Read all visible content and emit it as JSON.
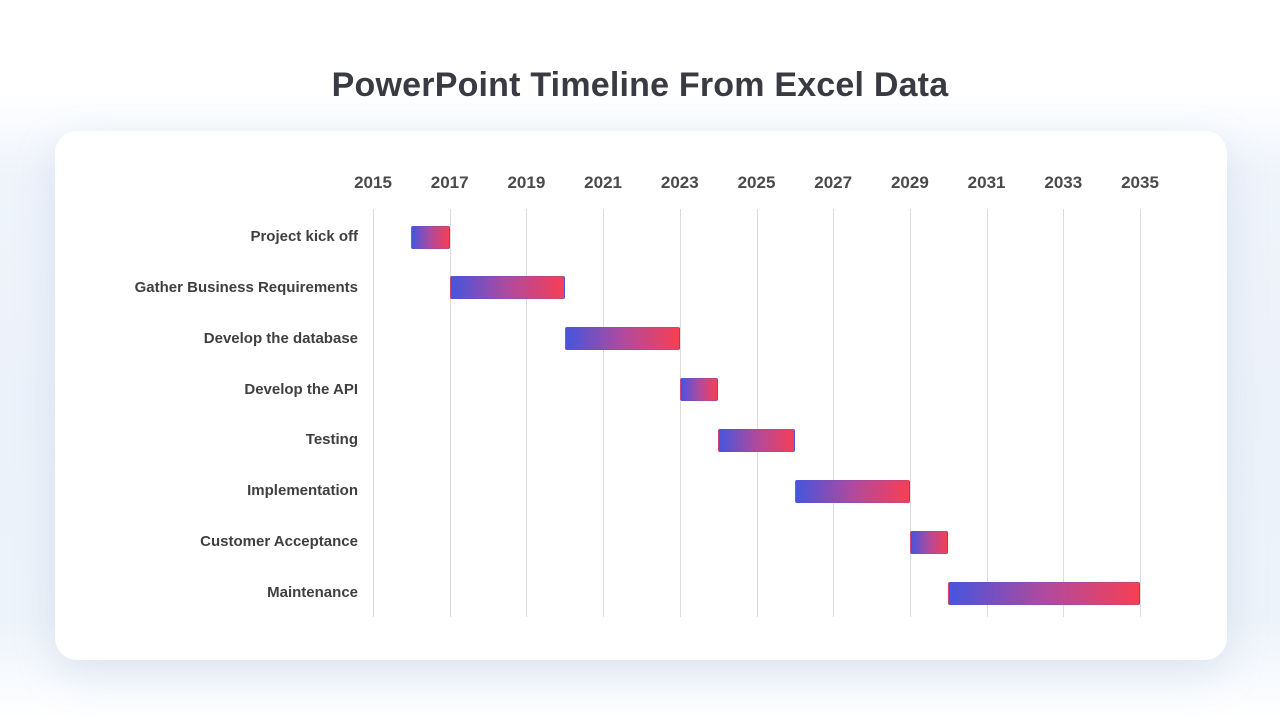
{
  "page": {
    "title": "PowerPoint Timeline From Excel Data"
  },
  "chart_data": {
    "type": "bar",
    "variant": "gantt-timeline",
    "title": "PowerPoint Timeline From Excel Data",
    "xlabel": "",
    "ylabel": "",
    "x_axis": {
      "min": 2015,
      "max": 2035,
      "tick_step": 2,
      "tick_labels": [
        "2015",
        "2017",
        "2019",
        "2021",
        "2023",
        "2025",
        "2027",
        "2029",
        "2031",
        "2033",
        "2035"
      ]
    },
    "grid": "vertical-only",
    "legend": "none",
    "tasks": [
      {
        "label": "Project kick off",
        "start": 2016,
        "end": 2017
      },
      {
        "label": "Gather Business Requirements",
        "start": 2017,
        "end": 2020
      },
      {
        "label": "Develop the database",
        "start": 2020,
        "end": 2023
      },
      {
        "label": "Develop the API",
        "start": 2023,
        "end": 2024
      },
      {
        "label": "Testing",
        "start": 2024,
        "end": 2026
      },
      {
        "label": "Implementation",
        "start": 2026,
        "end": 2029
      },
      {
        "label": "Customer Acceptance",
        "start": 2029,
        "end": 2030
      },
      {
        "label": "Maintenance",
        "start": 2030,
        "end": 2035
      }
    ],
    "colors": {
      "bar_gradient_start": "#4655DD",
      "bar_gradient_mid": "#AF4A9E",
      "bar_gradient_end": "#F63F55",
      "gridline": "#DCDCDC",
      "title_text": "#3A3A43",
      "axis_text": "#4A4A4A",
      "task_label_text": "#3F3F3F",
      "card_background": "#FFFFFF",
      "page_background_tint": "#EDF2FA"
    }
  }
}
